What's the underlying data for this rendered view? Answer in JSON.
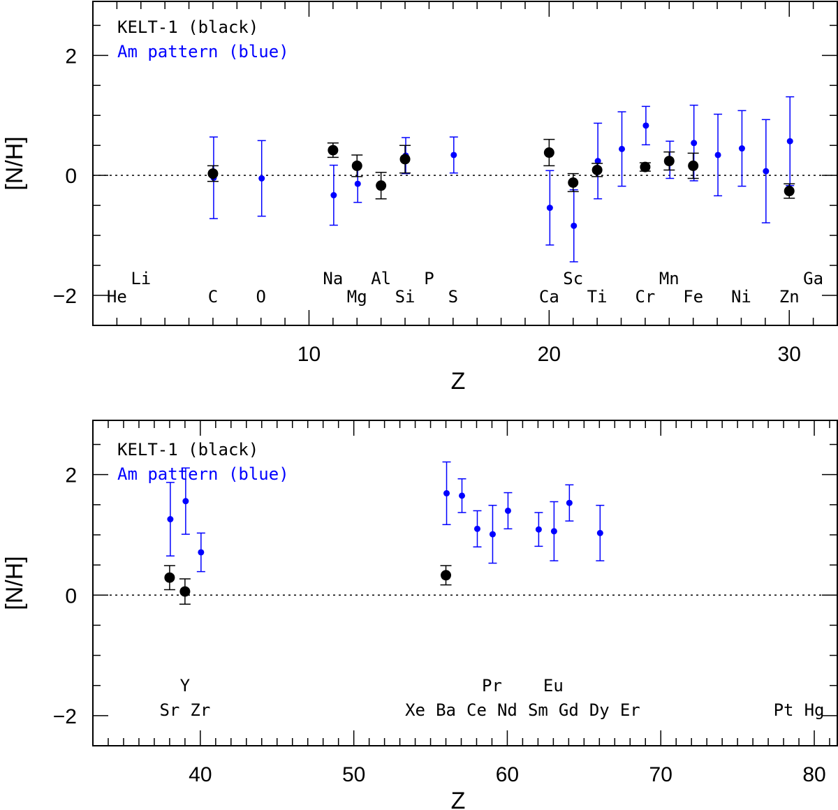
{
  "chart_data": [
    {
      "type": "scatter",
      "panel": "top",
      "xlabel": "Z",
      "ylabel": "[N/H]",
      "xlim": [
        1,
        32
      ],
      "ylim": [
        -2.5,
        2.9
      ],
      "x_major_ticks": [
        10,
        20,
        30
      ],
      "y_major_ticks": [
        -2,
        0,
        2
      ],
      "zero_line": true,
      "legend": [
        {
          "text": "KELT-1 (black)",
          "color": "#000000"
        },
        {
          "text": "Am pattern (blue)",
          "color": "#0000ff"
        }
      ],
      "element_labels": [
        {
          "z": 2,
          "symbol": "He",
          "row": "lower"
        },
        {
          "z": 3,
          "symbol": "Li",
          "row": "upper"
        },
        {
          "z": 6,
          "symbol": "C",
          "row": "lower"
        },
        {
          "z": 8,
          "symbol": "O",
          "row": "lower"
        },
        {
          "z": 11,
          "symbol": "Na",
          "row": "upper"
        },
        {
          "z": 12,
          "symbol": "Mg",
          "row": "lower"
        },
        {
          "z": 13,
          "symbol": "Al",
          "row": "upper"
        },
        {
          "z": 14,
          "symbol": "Si",
          "row": "lower"
        },
        {
          "z": 15,
          "symbol": "P",
          "row": "upper"
        },
        {
          "z": 16,
          "symbol": "S",
          "row": "lower"
        },
        {
          "z": 20,
          "symbol": "Ca",
          "row": "lower"
        },
        {
          "z": 21,
          "symbol": "Sc",
          "row": "upper"
        },
        {
          "z": 22,
          "symbol": "Ti",
          "row": "lower"
        },
        {
          "z": 24,
          "symbol": "Cr",
          "row": "lower"
        },
        {
          "z": 25,
          "symbol": "Mn",
          "row": "upper"
        },
        {
          "z": 26,
          "symbol": "Fe",
          "row": "lower"
        },
        {
          "z": 28,
          "symbol": "Ni",
          "row": "lower"
        },
        {
          "z": 30,
          "symbol": "Zn",
          "row": "lower"
        },
        {
          "z": 31,
          "symbol": "Ga",
          "row": "upper"
        }
      ],
      "series": [
        {
          "name": "KELT-1 (black)",
          "color": "#000000",
          "points": [
            {
              "x": 6,
              "y": 0.03,
              "err": 0.13
            },
            {
              "x": 11,
              "y": 0.42,
              "err": 0.12
            },
            {
              "x": 12,
              "y": 0.16,
              "err": 0.18
            },
            {
              "x": 13,
              "y": -0.17,
              "err": 0.22
            },
            {
              "x": 14,
              "y": 0.27,
              "err": 0.23
            },
            {
              "x": 20,
              "y": 0.38,
              "err": 0.22
            },
            {
              "x": 21,
              "y": -0.12,
              "err": 0.15
            },
            {
              "x": 22,
              "y": 0.09,
              "err": 0.11
            },
            {
              "x": 24,
              "y": 0.14,
              "err": 0.07
            },
            {
              "x": 25,
              "y": 0.24,
              "err": 0.15
            },
            {
              "x": 26,
              "y": 0.16,
              "err": 0.21
            },
            {
              "x": 30,
              "y": -0.26,
              "err": 0.12
            }
          ]
        },
        {
          "name": "Am pattern (blue)",
          "color": "#0000ff",
          "points": [
            {
              "x": 6,
              "y": -0.04,
              "err": 0.68
            },
            {
              "x": 8,
              "y": -0.05,
              "err": 0.63
            },
            {
              "x": 11,
              "y": -0.33,
              "err": 0.5
            },
            {
              "x": 12,
              "y": -0.14,
              "err": 0.31
            },
            {
              "x": 14,
              "y": 0.33,
              "err": 0.3
            },
            {
              "x": 16,
              "y": 0.34,
              "err": 0.3
            },
            {
              "x": 20,
              "y": -0.54,
              "err": 0.62
            },
            {
              "x": 21,
              "y": -0.84,
              "err": 0.6
            },
            {
              "x": 22,
              "y": 0.24,
              "err": 0.63
            },
            {
              "x": 23,
              "y": 0.44,
              "err": 0.62
            },
            {
              "x": 24,
              "y": 0.83,
              "err": 0.32
            },
            {
              "x": 25,
              "y": 0.26,
              "err": 0.31
            },
            {
              "x": 26,
              "y": 0.54,
              "err": 0.63
            },
            {
              "x": 27,
              "y": 0.34,
              "err": 0.68
            },
            {
              "x": 28,
              "y": 0.45,
              "err": 0.63
            },
            {
              "x": 29,
              "y": 0.07,
              "err": 0.86
            },
            {
              "x": 30,
              "y": 0.57,
              "err": 0.74
            }
          ]
        }
      ]
    },
    {
      "type": "scatter",
      "panel": "bottom",
      "xlabel": "Z",
      "ylabel": "[N/H]",
      "xlim": [
        33,
        81.5
      ],
      "ylim": [
        -2.5,
        2.9
      ],
      "x_major_ticks": [
        40,
        50,
        60,
        70,
        80
      ],
      "y_major_ticks": [
        -2,
        0,
        2
      ],
      "zero_line": true,
      "legend": [
        {
          "text": "KELT-1 (black)",
          "color": "#000000"
        },
        {
          "text": "Am pattern (blue)",
          "color": "#0000ff"
        }
      ],
      "element_labels": [
        {
          "z": 38,
          "symbol": "Sr",
          "row": "lower"
        },
        {
          "z": 39,
          "symbol": "Y",
          "row": "upper"
        },
        {
          "z": 40,
          "symbol": "Zr",
          "row": "lower"
        },
        {
          "z": 54,
          "symbol": "Xe",
          "row": "lower"
        },
        {
          "z": 56,
          "symbol": "Ba",
          "row": "lower"
        },
        {
          "z": 58,
          "symbol": "Ce",
          "row": "lower"
        },
        {
          "z": 59,
          "symbol": "Pr",
          "row": "upper"
        },
        {
          "z": 60,
          "symbol": "Nd",
          "row": "lower"
        },
        {
          "z": 62,
          "symbol": "Sm",
          "row": "lower"
        },
        {
          "z": 63,
          "symbol": "Eu",
          "row": "upper"
        },
        {
          "z": 64,
          "symbol": "Gd",
          "row": "lower"
        },
        {
          "z": 66,
          "symbol": "Dy",
          "row": "lower"
        },
        {
          "z": 68,
          "symbol": "Er",
          "row": "lower"
        },
        {
          "z": 78,
          "symbol": "Pt",
          "row": "lower"
        },
        {
          "z": 80,
          "symbol": "Hg",
          "row": "lower"
        }
      ],
      "series": [
        {
          "name": "KELT-1 (black)",
          "color": "#000000",
          "points": [
            {
              "x": 38,
              "y": 0.29,
              "err": 0.2
            },
            {
              "x": 39,
              "y": 0.06,
              "err": 0.21
            },
            {
              "x": 56,
              "y": 0.33,
              "err": 0.16
            }
          ]
        },
        {
          "name": "Am pattern (blue)",
          "color": "#0000ff",
          "points": [
            {
              "x": 38,
              "y": 1.26,
              "err": 0.61
            },
            {
              "x": 39,
              "y": 1.56,
              "err": 0.55
            },
            {
              "x": 40,
              "y": 0.71,
              "err": 0.32
            },
            {
              "x": 56,
              "y": 1.69,
              "err": 0.52
            },
            {
              "x": 57,
              "y": 1.65,
              "err": 0.28
            },
            {
              "x": 58,
              "y": 1.1,
              "err": 0.3
            },
            {
              "x": 59,
              "y": 1.01,
              "err": 0.48
            },
            {
              "x": 60,
              "y": 1.4,
              "err": 0.3
            },
            {
              "x": 62,
              "y": 1.09,
              "err": 0.28
            },
            {
              "x": 63,
              "y": 1.06,
              "err": 0.49
            },
            {
              "x": 64,
              "y": 1.53,
              "err": 0.3
            },
            {
              "x": 66,
              "y": 1.03,
              "err": 0.46
            }
          ]
        }
      ]
    }
  ]
}
